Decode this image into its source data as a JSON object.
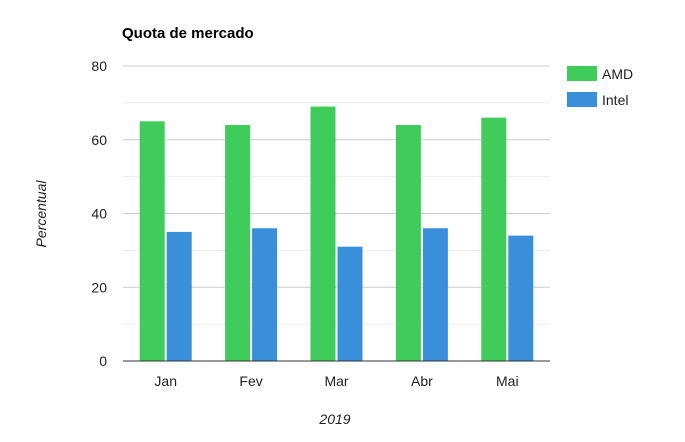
{
  "chart_data": {
    "type": "bar",
    "title": "Quota de mercado",
    "xlabel": "2019",
    "ylabel": "Percentual",
    "categories": [
      "Jan",
      "Fev",
      "Mar",
      "Abr",
      "Mai"
    ],
    "series": [
      {
        "name": "AMD",
        "values": [
          65,
          64,
          69,
          64,
          66
        ],
        "color": "#3fcc5a"
      },
      {
        "name": "Intel",
        "values": [
          35,
          36,
          31,
          36,
          34
        ],
        "color": "#3a8fdb"
      }
    ],
    "ylim": [
      0,
      80
    ],
    "yticks": [
      0,
      20,
      40,
      60,
      80
    ],
    "grid": true,
    "legend": "right"
  }
}
